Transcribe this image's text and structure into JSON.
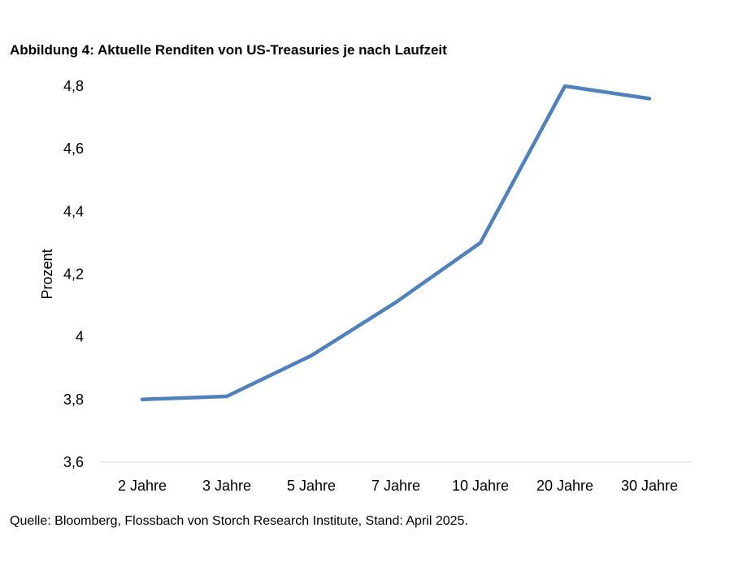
{
  "figure": {
    "title": "Abbildung 4: Aktuelle Renditen von US-Treasuries je nach Laufzeit",
    "source": "Quelle: Bloomberg, Flossbach von Storch Research Institute, Stand: April 2025."
  },
  "chart_data": {
    "type": "line",
    "title": "Abbildung 4: Aktuelle Renditen von US-Treasuries je nach Laufzeit",
    "xlabel": "",
    "ylabel": "Prozent",
    "categories": [
      "2 Jahre",
      "3 Jahre",
      "5 Jahre",
      "7 Jahre",
      "10 Jahre",
      "20 Jahre",
      "30 Jahre"
    ],
    "series": [
      {
        "values": [
          3.8,
          3.81,
          3.94,
          4.11,
          4.3,
          4.8,
          4.76
        ],
        "color": "#4f81bd"
      }
    ],
    "ylim": [
      3.6,
      4.8
    ],
    "yticks": [
      "3,6",
      "3,8",
      "4",
      "4,2",
      "4,4",
      "4,6",
      "4,8"
    ],
    "grid": false,
    "legend": "none"
  }
}
